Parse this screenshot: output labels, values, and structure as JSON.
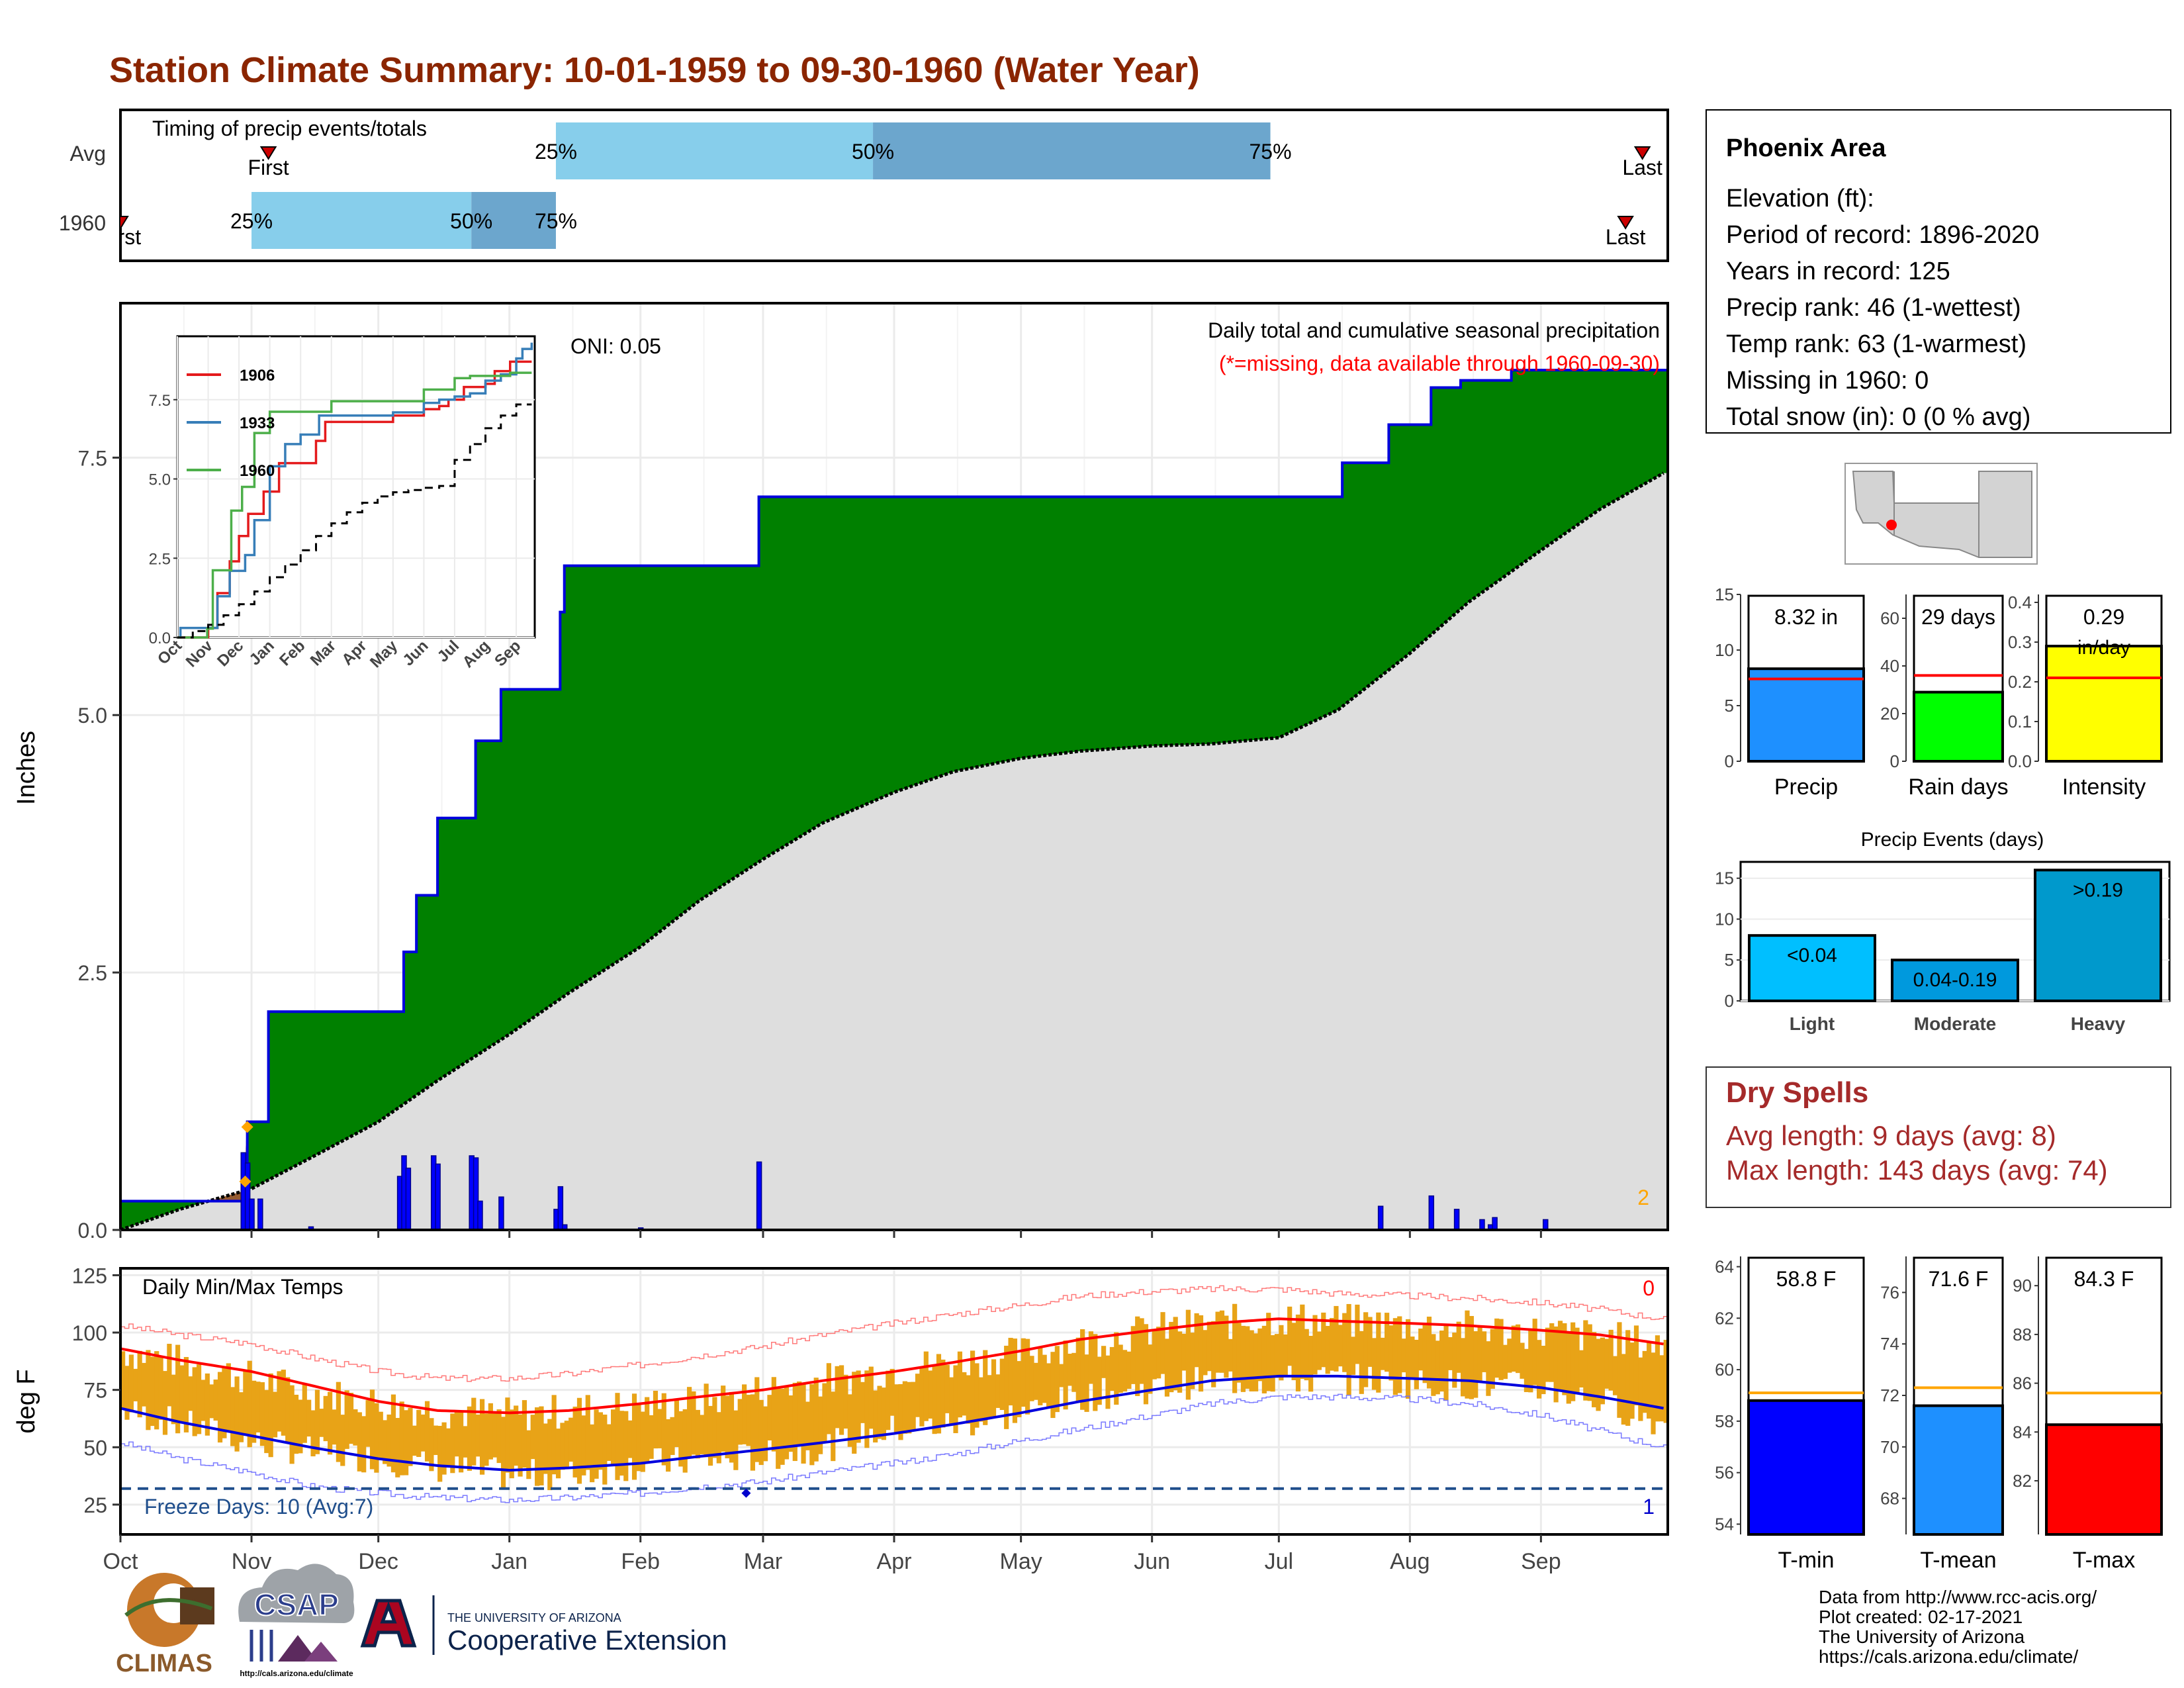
{
  "title": "Station Climate Summary: 10-01-1959 to 09-30-1960 (Water Year)",
  "colors": {
    "title": "#8B2500",
    "green": "#008000",
    "blue_line": "#0000DD",
    "avg_fill": "#DEDEDE",
    "bar_blue": "#0000FF",
    "light_blue": "#87CEEB",
    "mid_blue": "#6CA6CD",
    "orange": "#E8A317",
    "red": "#FF0000",
    "dry_red": "#A52A2A"
  },
  "timing": {
    "label": "Timing of precip events/totals",
    "rows": [
      {
        "name": "Avg",
        "first_label": "First",
        "last_label": "Last",
        "first_date": "1959-11-05",
        "last_date": "1960-09-25",
        "q25_label": "25%",
        "q50_label": "50%",
        "q75_label": "75%",
        "q25_date": "1960-01-12",
        "q50_date": "1960-03-27",
        "q75_date": "1960-06-29"
      },
      {
        "name": "1960",
        "first_label": "First",
        "last_label": "Last",
        "first_date": "1959-10-01",
        "last_date": "1960-09-21",
        "q25_label": "25%",
        "q50_label": "50%",
        "q75_label": "75%",
        "q25_date": "1959-11-01",
        "q50_date": "1959-12-23",
        "q75_date": "1960-01-12"
      }
    ]
  },
  "main_chart": {
    "ylabel": "Inches",
    "yticks": [
      0.0,
      2.5,
      5.0,
      7.5
    ],
    "ytick_labels": [
      "0.0",
      "2.5",
      "5.0",
      "7.5"
    ],
    "ylim": [
      0,
      9.0
    ],
    "oni_label": "ONI: 0.05",
    "subtitle": "Daily total and cumulative seasonal precipitation",
    "missing_note": "(*=missing, data available through 1960-09-30)",
    "corner_count": "2",
    "months": [
      "Oct",
      "Nov",
      "Dec",
      "Jan",
      "Feb",
      "Mar",
      "Apr",
      "May",
      "Jun",
      "Jul",
      "Aug",
      "Sep"
    ]
  },
  "chart_data": [
    {
      "type": "area",
      "title": "Daily total and cumulative seasonal precipitation",
      "ylabel": "Inches",
      "ylim": [
        0,
        9.0
      ],
      "cumulative_1960": {
        "x": [
          "1959-10-01",
          "1959-10-30",
          "1959-10-31",
          "1959-11-05",
          "1959-12-06",
          "1959-12-07",
          "1959-12-10",
          "1959-12-15",
          "1959-12-23",
          "1959-12-24",
          "1959-12-30",
          "1960-01-12",
          "1960-01-13",
          "1960-01-14",
          "1960-02-28",
          "1960-02-29",
          "1960-06-25",
          "1960-06-26",
          "1960-07-15",
          "1960-07-16",
          "1960-07-25",
          "1960-07-27",
          "1960-08-04",
          "1960-08-06",
          "1960-08-12",
          "1960-08-13",
          "1960-08-24",
          "1960-08-25",
          "1960-09-30"
        ],
        "y": [
          0.28,
          0.28,
          1.05,
          2.12,
          2.12,
          2.7,
          3.25,
          4.0,
          4.0,
          4.75,
          5.25,
          5.25,
          6.0,
          6.45,
          6.45,
          7.12,
          7.12,
          7.12,
          7.12,
          7.45,
          7.45,
          7.82,
          7.82,
          8.18,
          8.18,
          8.25,
          8.25,
          8.35,
          8.35
        ]
      },
      "cumulative_avg": {
        "x": [
          "1959-10-01",
          "1959-10-15",
          "1959-11-01",
          "1959-11-15",
          "1959-12-01",
          "1959-12-15",
          "1960-01-01",
          "1960-01-15",
          "1960-02-01",
          "1960-02-15",
          "1960-03-01",
          "1960-03-15",
          "1960-04-01",
          "1960-04-15",
          "1960-05-01",
          "1960-05-15",
          "1960-06-01",
          "1960-06-15",
          "1960-07-01",
          "1960-07-15",
          "1960-08-01",
          "1960-08-15",
          "1960-09-01",
          "1960-09-15",
          "1960-09-30"
        ],
        "y": [
          0.0,
          0.2,
          0.4,
          0.7,
          1.05,
          1.45,
          1.9,
          2.3,
          2.75,
          3.2,
          3.6,
          3.95,
          4.25,
          4.45,
          4.58,
          4.65,
          4.7,
          4.72,
          4.78,
          5.05,
          5.6,
          6.1,
          6.6,
          7.0,
          7.35
        ]
      },
      "daily_precip": {
        "x": [
          "1959-10-30",
          "1959-10-31",
          "1959-11-01",
          "1959-11-03",
          "1959-11-15",
          "1959-12-06",
          "1959-12-07",
          "1959-12-08",
          "1959-12-14",
          "1959-12-15",
          "1959-12-23",
          "1959-12-24",
          "1959-12-25",
          "1959-12-30",
          "1960-01-12",
          "1960-01-13",
          "1960-01-14",
          "1960-02-01",
          "1960-02-29",
          "1960-07-25",
          "1960-08-06",
          "1960-08-12",
          "1960-08-18",
          "1960-08-20",
          "1960-08-21",
          "1960-09-02"
        ],
        "y": [
          0.75,
          0.65,
          0.3,
          0.3,
          0.03,
          0.52,
          0.72,
          0.6,
          0.72,
          0.64,
          0.72,
          0.7,
          0.28,
          0.32,
          0.2,
          0.42,
          0.05,
          0.02,
          0.66,
          0.23,
          0.33,
          0.2,
          0.1,
          0.05,
          0.12,
          0.1
        ]
      }
    },
    {
      "type": "line",
      "title": "Daily Min/Max Temps",
      "ylabel": "deg F",
      "ylim": [
        12,
        128
      ],
      "x": [
        "1959-10-01",
        "1959-10-15",
        "1959-11-01",
        "1959-11-15",
        "1959-12-01",
        "1959-12-15",
        "1960-01-01",
        "1960-01-15",
        "1960-02-01",
        "1960-02-15",
        "1960-03-01",
        "1960-03-15",
        "1960-04-01",
        "1960-04-15",
        "1960-05-01",
        "1960-05-15",
        "1960-06-01",
        "1960-06-15",
        "1960-07-01",
        "1960-07-15",
        "1960-08-01",
        "1960-08-15",
        "1960-09-01",
        "1960-09-15",
        "1960-09-30"
      ],
      "series": [
        {
          "name": "avg_max",
          "values": [
            93,
            88,
            83,
            77,
            70,
            66,
            65,
            66,
            69,
            72,
            75,
            79,
            83,
            87,
            92,
            97,
            101,
            104,
            106,
            105,
            104,
            103,
            101,
            99,
            95
          ]
        },
        {
          "name": "avg_min",
          "values": [
            67,
            61,
            55,
            50,
            45,
            42,
            40,
            41,
            43,
            46,
            49,
            52,
            56,
            60,
            65,
            70,
            75,
            79,
            81,
            81,
            80,
            79,
            76,
            72,
            67
          ]
        },
        {
          "name": "record_high",
          "values": [
            103,
            99,
            95,
            89,
            83,
            80,
            80,
            82,
            86,
            90,
            94,
            99,
            104,
            108,
            112,
            116,
            118,
            119,
            119,
            117,
            116,
            115,
            113,
            110,
            106
          ]
        },
        {
          "name": "record_low",
          "values": [
            52,
            45,
            39,
            33,
            30,
            28,
            27,
            28,
            30,
            33,
            35,
            39,
            43,
            47,
            53,
            58,
            64,
            69,
            72,
            72,
            71,
            69,
            64,
            57,
            50
          ]
        },
        {
          "name": "observed_max_1960",
          "values": [
            92,
            87,
            80,
            74,
            69,
            66,
            64,
            66,
            68,
            70,
            75,
            79,
            84,
            87,
            91,
            96,
            101,
            104,
            106,
            105,
            103,
            102,
            100,
            98,
            94
          ]
        },
        {
          "name": "observed_min_1960",
          "values": [
            66,
            60,
            52,
            48,
            45,
            41,
            38,
            38,
            43,
            44,
            46,
            50,
            58,
            60,
            65,
            72,
            76,
            79,
            79,
            80,
            78,
            77,
            76,
            70,
            60
          ]
        }
      ],
      "freeze_line": 32,
      "freeze_label": "Freeze Days: 10 (Avg:7)",
      "count_top": "0",
      "count_bottom": "1",
      "yticks": [
        25,
        50,
        75,
        100,
        125
      ]
    },
    {
      "type": "bar",
      "title": "Precip",
      "categories": [
        "Precip"
      ],
      "values": [
        8.32
      ],
      "label": "8.32 in",
      "avg": 7.4,
      "ylim": [
        0,
        15
      ],
      "yticks": [
        0,
        5,
        10,
        15
      ]
    },
    {
      "type": "bar",
      "title": "Rain days",
      "categories": [
        "Rain days"
      ],
      "values": [
        29
      ],
      "label": "29 days",
      "avg": 36,
      "ylim": [
        0,
        70
      ],
      "yticks": [
        0,
        20,
        40,
        60
      ]
    },
    {
      "type": "bar",
      "title": "Intensity",
      "categories": [
        "Intensity"
      ],
      "values": [
        0.29
      ],
      "label": "0.29 in/day",
      "avg": 0.21,
      "ylim": [
        0,
        0.42
      ],
      "yticks": [
        0.0,
        0.1,
        0.2,
        0.3,
        0.4
      ]
    },
    {
      "type": "bar",
      "title": "Precip Events (days)",
      "categories": [
        "Light",
        "Moderate",
        "Heavy"
      ],
      "values": [
        8,
        5,
        16
      ],
      "bar_labels": [
        "<0.04",
        "0.04-0.19",
        ">0.19"
      ],
      "ylim": [
        0,
        17
      ],
      "yticks": [
        0,
        5,
        10,
        15
      ]
    },
    {
      "type": "bar",
      "title": "T-min",
      "categories": [
        "T-min"
      ],
      "values": [
        58.8
      ],
      "label": "58.8 F",
      "avg": 59.1,
      "ylim": [
        53.6,
        64.4
      ],
      "yticks": [
        54,
        56,
        58,
        60,
        62,
        64
      ]
    },
    {
      "type": "bar",
      "title": "T-mean",
      "categories": [
        "T-mean"
      ],
      "values": [
        71.6
      ],
      "label": "71.6 F",
      "avg": 72.3,
      "ylim": [
        66.6,
        77.4
      ],
      "yticks": [
        68,
        70,
        72,
        74,
        76
      ]
    },
    {
      "type": "bar",
      "title": "T-max",
      "categories": [
        "T-max"
      ],
      "values": [
        84.3
      ],
      "label": "84.3 F",
      "avg": 85.6,
      "ylim": [
        79.8,
        91.2
      ],
      "yticks": [
        82,
        84,
        86,
        88,
        90
      ]
    }
  ],
  "inset": {
    "yticks": [
      0.0,
      2.5,
      5.0,
      7.5
    ],
    "ytick_labels": [
      "0.0",
      "2.5",
      "5.0",
      "7.5"
    ],
    "ylim": [
      0,
      9.5
    ],
    "months": [
      "Oct",
      "Nov",
      "Dec",
      "Jan",
      "Feb",
      "Mar",
      "Apr",
      "May",
      "Jun",
      "Jul",
      "Aug",
      "Sep"
    ],
    "legend": [
      {
        "name": "1906",
        "color": "#E41A1C"
      },
      {
        "name": "1933",
        "color": "#377EB8"
      },
      {
        "name": "1960",
        "color": "#4DAF4A"
      }
    ],
    "series": [
      {
        "name": "1906",
        "color": "#E41A1C",
        "x": [
          0,
          0.8,
          1.0,
          1.3,
          1.7,
          2.0,
          2.3,
          2.8,
          3.3,
          4.5,
          4.8,
          6.5,
          7.0,
          7.3,
          8.0,
          8.5,
          8.8,
          9.3,
          10.0,
          10.3,
          10.8,
          11.1,
          11.5
        ],
        "y": [
          0,
          0,
          0.3,
          1.4,
          2.4,
          3.2,
          3.9,
          4.6,
          5.5,
          6.2,
          6.8,
          6.8,
          7.0,
          7.0,
          7.2,
          7.3,
          7.5,
          7.9,
          8.0,
          8.4,
          8.7,
          8.7,
          8.7
        ]
      },
      {
        "name": "1933",
        "color": "#377EB8",
        "x": [
          0,
          0.1,
          1.0,
          1.3,
          1.7,
          2.2,
          2.5,
          3.0,
          3.5,
          4.0,
          4.6,
          6.5,
          7.0,
          7.5,
          8.0,
          8.5,
          9.0,
          9.5,
          10.0,
          10.5,
          11.0,
          11.2,
          11.5
        ],
        "y": [
          0,
          0.3,
          0.3,
          1.3,
          2.1,
          2.6,
          3.7,
          5.4,
          6.1,
          6.4,
          7.0,
          7.0,
          7.1,
          7.1,
          7.4,
          7.5,
          7.6,
          7.7,
          8.1,
          8.3,
          8.8,
          9.1,
          9.3
        ]
      },
      {
        "name": "1960",
        "color": "#4DAF4A",
        "x": [
          0,
          0.97,
          1.15,
          1.5,
          1.75,
          2.1,
          2.5,
          3.0,
          3.3,
          5.0,
          7.0,
          8.0,
          9.0,
          9.5,
          10.0,
          10.3,
          10.8,
          11.0,
          11.5
        ],
        "y": [
          0,
          0.28,
          2.12,
          2.12,
          4.0,
          4.75,
          6.45,
          7.12,
          7.12,
          7.45,
          7.45,
          7.82,
          8.18,
          8.25,
          8.25,
          8.25,
          8.35,
          8.35,
          8.35
        ]
      },
      {
        "name": "avg",
        "color": "#000000",
        "x": [
          0,
          0.5,
          1.0,
          1.5,
          2.0,
          2.5,
          3.0,
          3.5,
          4.0,
          4.5,
          5.0,
          5.5,
          6.0,
          6.5,
          7.0,
          7.5,
          8.0,
          8.5,
          9.0,
          9.5,
          10.0,
          10.5,
          11.0,
          11.5
        ],
        "y": [
          0,
          0.2,
          0.4,
          0.7,
          1.05,
          1.45,
          1.9,
          2.3,
          2.75,
          3.2,
          3.6,
          3.95,
          4.25,
          4.45,
          4.58,
          4.65,
          4.72,
          4.78,
          5.6,
          6.1,
          6.6,
          7.0,
          7.35,
          7.35
        ]
      }
    ]
  },
  "station": {
    "name": "Phoenix Area",
    "lines": [
      "Elevation (ft):",
      "Period of record: 1896-2020",
      "Years in record: 125",
      "Precip rank: 46 (1-wettest)",
      "Temp rank: 63 (1-warmest)",
      "Missing in 1960: 0",
      "Total snow (in): 0 (0 % avg)"
    ]
  },
  "small_bars": {
    "precip": {
      "label_top": "8.32 in",
      "xlabel": "Precip"
    },
    "raindays": {
      "label_top": "29 days",
      "xlabel": "Rain days"
    },
    "intensity": {
      "label_top": "0.29",
      "label_unit": "in/day",
      "xlabel": "Intensity"
    }
  },
  "events": {
    "title": "Precip Events (days)",
    "categories": [
      "Light",
      "Moderate",
      "Heavy"
    ],
    "bar_labels": [
      "<0.04",
      "0.04-0.19",
      ">0.19"
    ]
  },
  "dry_spells": {
    "title": "Dry Spells",
    "avg_line": "Avg length: 9 days (avg: 8)",
    "max_line": "Max length: 143 days (avg: 74)"
  },
  "temp_bars": {
    "tmin": {
      "label_top": "58.8 F",
      "xlabel": "T-min"
    },
    "tmean": {
      "label_top": "71.6 F",
      "xlabel": "T-mean"
    },
    "tmax": {
      "label_top": "84.3 F",
      "xlabel": "T-max"
    }
  },
  "temp_chart": {
    "title": "Daily Min/Max Temps",
    "ylabel": "deg F",
    "freeze_label": "Freeze Days: 10 (Avg:7)",
    "count_top": "0",
    "count_bottom": "1"
  },
  "credits": [
    "Data from http://www.rcc-acis.org/",
    "Plot created: 02-17-2021",
    "The University of Arizona",
    "https://cals.arizona.edu/climate/"
  ],
  "logos": {
    "climas": "CLIMAS",
    "csap": "CSAP",
    "csap_url": "http://cals.arizona.edu/climate",
    "ua_line1": "THE UNIVERSITY OF ARIZONA",
    "ua_line2": "Cooperative Extension"
  }
}
